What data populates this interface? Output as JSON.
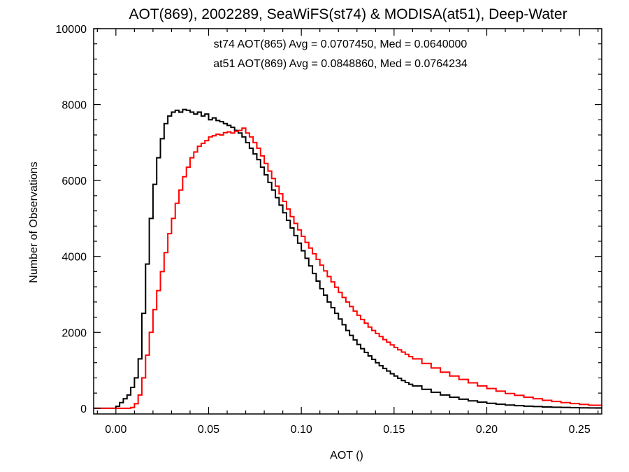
{
  "chart_data": {
    "type": "line",
    "title": "AOT(869), 2002289, SeaWiFS(st74) & MODISA(at51), Deep-Water",
    "xlabel": "AOT ()",
    "ylabel": "Number of Observations",
    "xlim": [
      -0.012,
      0.262
    ],
    "ylim": [
      -150,
      10000
    ],
    "x_ticks": [
      {
        "value": 0.0,
        "label": "0.00"
      },
      {
        "value": 0.05,
        "label": "0.05"
      },
      {
        "value": 0.1,
        "label": "0.10"
      },
      {
        "value": 0.15,
        "label": "0.15"
      },
      {
        "value": 0.2,
        "label": "0.20"
      },
      {
        "value": 0.25,
        "label": "0.25"
      }
    ],
    "y_ticks": [
      {
        "value": 0,
        "label": "0"
      },
      {
        "value": 2000,
        "label": "2000"
      },
      {
        "value": 4000,
        "label": "4000"
      },
      {
        "value": 6000,
        "label": "6000"
      },
      {
        "value": 8000,
        "label": "8000"
      },
      {
        "value": 10000,
        "label": "10000"
      }
    ],
    "grid": false,
    "step_style": "histogram",
    "annotations": [
      {
        "text": "st74 AOT(865) Avg = 0.0707450, Med = 0.0640000",
        "color": "#000000"
      },
      {
        "text": "at51 AOT(869) Avg = 0.0848860, Med = 0.0764234",
        "color": "#ff0000"
      }
    ],
    "series": [
      {
        "color": "#000000",
        "x": [
          -0.012,
          -0.005,
          0.0,
          0.002,
          0.004,
          0.006,
          0.008,
          0.01,
          0.012,
          0.014,
          0.016,
          0.018,
          0.02,
          0.022,
          0.024,
          0.026,
          0.028,
          0.03,
          0.032,
          0.034,
          0.036,
          0.038,
          0.04,
          0.042,
          0.044,
          0.046,
          0.048,
          0.05,
          0.052,
          0.054,
          0.056,
          0.058,
          0.06,
          0.062,
          0.064,
          0.066,
          0.068,
          0.07,
          0.072,
          0.074,
          0.076,
          0.078,
          0.08,
          0.082,
          0.084,
          0.086,
          0.088,
          0.09,
          0.092,
          0.094,
          0.096,
          0.098,
          0.1,
          0.102,
          0.104,
          0.106,
          0.108,
          0.11,
          0.112,
          0.114,
          0.116,
          0.118,
          0.12,
          0.122,
          0.124,
          0.126,
          0.128,
          0.13,
          0.132,
          0.134,
          0.136,
          0.138,
          0.14,
          0.142,
          0.144,
          0.146,
          0.148,
          0.15,
          0.152,
          0.154,
          0.156,
          0.158,
          0.16,
          0.165,
          0.17,
          0.175,
          0.18,
          0.185,
          0.19,
          0.195,
          0.2,
          0.205,
          0.21,
          0.215,
          0.22,
          0.225,
          0.23,
          0.235,
          0.24,
          0.245,
          0.25,
          0.255,
          0.262
        ],
        "values": [
          0,
          0,
          50,
          150,
          250,
          350,
          550,
          800,
          1300,
          2500,
          3800,
          5000,
          5900,
          6600,
          7100,
          7500,
          7700,
          7800,
          7850,
          7800,
          7870,
          7850,
          7800,
          7750,
          7800,
          7700,
          7750,
          7600,
          7650,
          7580,
          7550,
          7500,
          7450,
          7400,
          7320,
          7250,
          7150,
          7000,
          6850,
          6700,
          6550,
          6350,
          6150,
          5950,
          5750,
          5550,
          5350,
          5150,
          4950,
          4750,
          4550,
          4350,
          4150,
          3950,
          3750,
          3550,
          3350,
          3150,
          2980,
          2800,
          2650,
          2500,
          2350,
          2200,
          2050,
          1920,
          1800,
          1680,
          1570,
          1470,
          1380,
          1290,
          1200,
          1120,
          1050,
          980,
          910,
          850,
          790,
          730,
          680,
          630,
          590,
          500,
          420,
          350,
          290,
          240,
          195,
          160,
          130,
          105,
          85,
          68,
          55,
          45,
          35,
          28,
          22,
          16,
          12,
          8,
          6
        ]
      },
      {
        "color": "#ff0000",
        "x": [
          -0.012,
          0.0,
          0.004,
          0.008,
          0.01,
          0.012,
          0.014,
          0.016,
          0.018,
          0.02,
          0.022,
          0.024,
          0.026,
          0.028,
          0.03,
          0.032,
          0.034,
          0.036,
          0.038,
          0.04,
          0.042,
          0.044,
          0.046,
          0.048,
          0.05,
          0.052,
          0.054,
          0.056,
          0.058,
          0.06,
          0.062,
          0.064,
          0.066,
          0.068,
          0.07,
          0.072,
          0.074,
          0.076,
          0.078,
          0.08,
          0.082,
          0.084,
          0.086,
          0.088,
          0.09,
          0.092,
          0.094,
          0.096,
          0.098,
          0.1,
          0.102,
          0.104,
          0.106,
          0.108,
          0.11,
          0.112,
          0.114,
          0.116,
          0.118,
          0.12,
          0.122,
          0.124,
          0.126,
          0.128,
          0.13,
          0.132,
          0.134,
          0.136,
          0.138,
          0.14,
          0.142,
          0.144,
          0.146,
          0.148,
          0.15,
          0.152,
          0.154,
          0.156,
          0.158,
          0.16,
          0.165,
          0.17,
          0.175,
          0.18,
          0.185,
          0.19,
          0.195,
          0.2,
          0.205,
          0.21,
          0.215,
          0.22,
          0.225,
          0.23,
          0.235,
          0.24,
          0.245,
          0.25,
          0.255,
          0.262
        ],
        "values": [
          0,
          0,
          0,
          20,
          120,
          350,
          800,
          1400,
          2000,
          2600,
          3100,
          3600,
          4100,
          4600,
          5000,
          5400,
          5750,
          6100,
          6350,
          6600,
          6750,
          6900,
          6980,
          7050,
          7150,
          7180,
          7220,
          7200,
          7260,
          7280,
          7250,
          7300,
          7320,
          7380,
          7250,
          7150,
          7000,
          6850,
          6650,
          6450,
          6250,
          6050,
          5850,
          5650,
          5450,
          5250,
          5050,
          4870,
          4700,
          4530,
          4370,
          4220,
          4070,
          3920,
          3770,
          3620,
          3470,
          3330,
          3190,
          3050,
          2920,
          2800,
          2680,
          2560,
          2450,
          2340,
          2240,
          2140,
          2050,
          1970,
          1890,
          1810,
          1740,
          1670,
          1600,
          1540,
          1480,
          1420,
          1360,
          1300,
          1180,
          1060,
          950,
          850,
          760,
          670,
          590,
          520,
          450,
          390,
          340,
          290,
          250,
          210,
          180,
          150,
          125,
          100,
          80,
          60
        ]
      }
    ]
  }
}
